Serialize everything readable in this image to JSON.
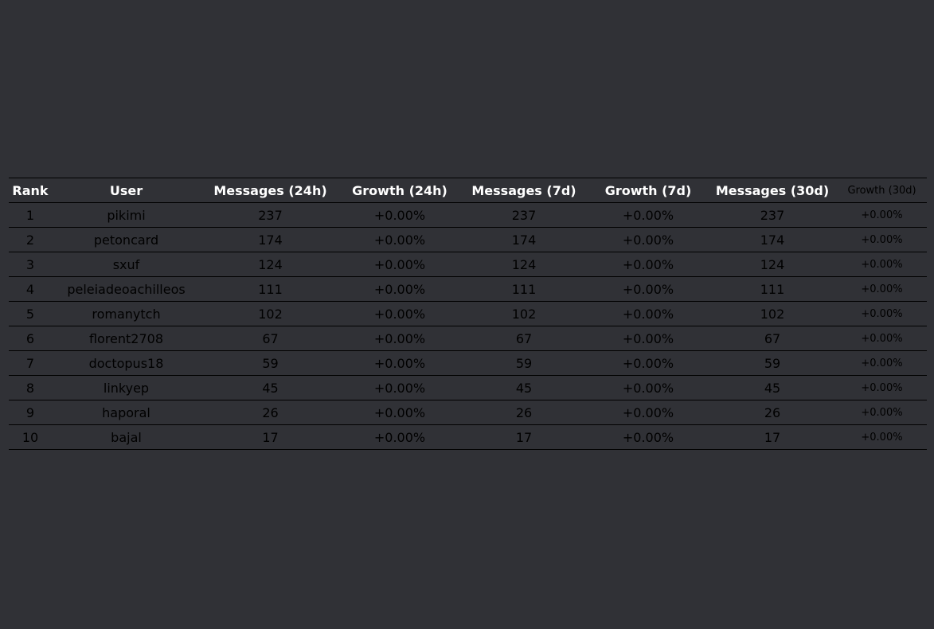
{
  "table": {
    "headers": [
      "Rank",
      "User",
      "Messages (24h)",
      "Growth (24h)",
      "Messages (7d)",
      "Growth (7d)",
      "Messages (30d)",
      "Growth (30d)"
    ],
    "rows": [
      {
        "rank": "1",
        "user": "pikimi",
        "m24": "237",
        "g24": "+0.00%",
        "m7": "237",
        "g7": "+0.00%",
        "m30": "237",
        "g30": "+0.00%"
      },
      {
        "rank": "2",
        "user": "petoncard",
        "m24": "174",
        "g24": "+0.00%",
        "m7": "174",
        "g7": "+0.00%",
        "m30": "174",
        "g30": "+0.00%"
      },
      {
        "rank": "3",
        "user": "sxuf",
        "m24": "124",
        "g24": "+0.00%",
        "m7": "124",
        "g7": "+0.00%",
        "m30": "124",
        "g30": "+0.00%"
      },
      {
        "rank": "4",
        "user": "peleiadeoachilleos",
        "m24": "111",
        "g24": "+0.00%",
        "m7": "111",
        "g7": "+0.00%",
        "m30": "111",
        "g30": "+0.00%"
      },
      {
        "rank": "5",
        "user": "romanytch",
        "m24": "102",
        "g24": "+0.00%",
        "m7": "102",
        "g7": "+0.00%",
        "m30": "102",
        "g30": "+0.00%"
      },
      {
        "rank": "6",
        "user": "florent2708",
        "m24": "67",
        "g24": "+0.00%",
        "m7": "67",
        "g7": "+0.00%",
        "m30": "67",
        "g30": "+0.00%"
      },
      {
        "rank": "7",
        "user": "doctopus18",
        "m24": "59",
        "g24": "+0.00%",
        "m7": "59",
        "g7": "+0.00%",
        "m30": "59",
        "g30": "+0.00%"
      },
      {
        "rank": "8",
        "user": "linkyep",
        "m24": "45",
        "g24": "+0.00%",
        "m7": "45",
        "g7": "+0.00%",
        "m30": "45",
        "g30": "+0.00%"
      },
      {
        "rank": "9",
        "user": "haporal",
        "m24": "26",
        "g24": "+0.00%",
        "m7": "26",
        "g7": "+0.00%",
        "m30": "26",
        "g30": "+0.00%"
      },
      {
        "rank": "10",
        "user": "bajal",
        "m24": "17",
        "g24": "+0.00%",
        "m7": "17",
        "g7": "+0.00%",
        "m30": "17",
        "g30": "+0.00%"
      }
    ]
  },
  "colors": {
    "background": "#303136",
    "header_text": "#ffffff",
    "cell_text": "#000000",
    "rule": "#000000"
  }
}
